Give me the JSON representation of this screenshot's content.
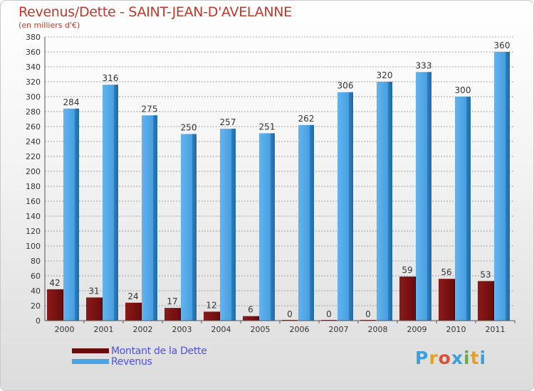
{
  "title": "Revenus/Dette - SAINT-JEAN-D'AVELANNE",
  "subtitle": "(en milliers d'€)",
  "logo": {
    "letters": [
      "P",
      "r",
      "o",
      "x",
      "i",
      "t",
      "i"
    ],
    "colors": [
      "#3aa0dc",
      "#e8a020",
      "#e05030",
      "#3aa0dc",
      "#60b040",
      "#e8a020",
      "#3aa0dc"
    ]
  },
  "colors": {
    "debt": "#7a1010",
    "revenue": "#4aa3e6",
    "grid": "#888888",
    "axis_text": "#333333"
  },
  "chart_data": {
    "type": "bar",
    "title": "Revenus/Dette - SAINT-JEAN-D'AVELANNE",
    "subtitle": "(en milliers d'€)",
    "categories": [
      "2000",
      "2001",
      "2002",
      "2003",
      "2004",
      "2005",
      "2006",
      "2007",
      "2008",
      "2009",
      "2010",
      "2011"
    ],
    "series": [
      {
        "name": "Montant de la Dette",
        "values": [
          42,
          31,
          24,
          17,
          12,
          6,
          0,
          0,
          0,
          59,
          56,
          53
        ]
      },
      {
        "name": "Revenus",
        "values": [
          284,
          316,
          275,
          250,
          257,
          251,
          262,
          306,
          320,
          333,
          300,
          360
        ]
      }
    ],
    "ylim": [
      0,
      380
    ],
    "yticks": [
      0,
      20,
      40,
      60,
      80,
      100,
      120,
      140,
      160,
      180,
      200,
      220,
      240,
      260,
      280,
      300,
      320,
      340,
      360,
      380
    ],
    "grid": true,
    "legend_position": "bottom-left",
    "data_labels": true
  }
}
